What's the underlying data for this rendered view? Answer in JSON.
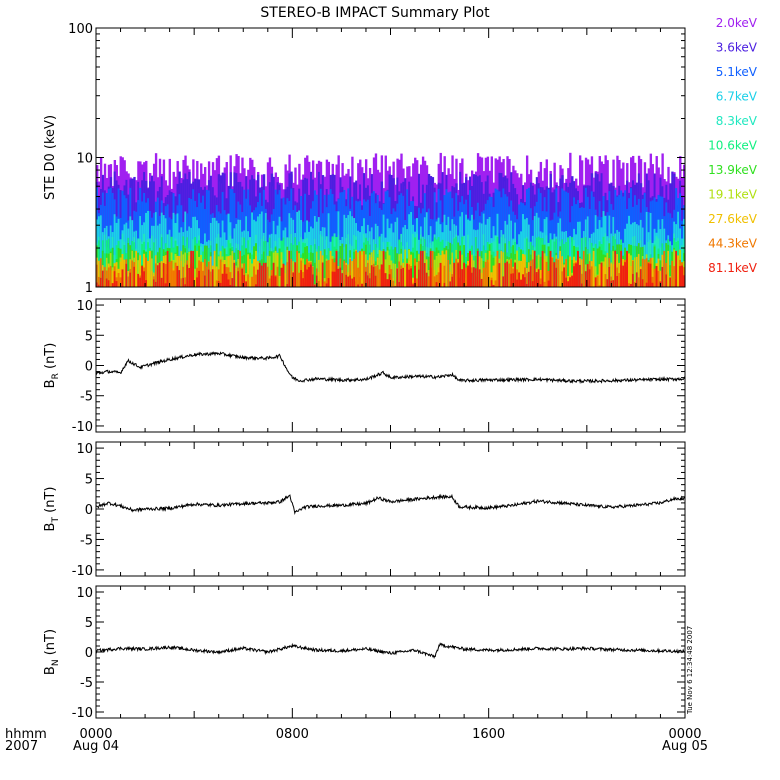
{
  "title": "STEREO-B IMPACT Summary Plot",
  "timestamp_label": "Tue Nov  6 12:34:48 2007",
  "x_axis": {
    "left_label_top": "hhmm",
    "left_label_bottom": "2007",
    "ticks": [
      {
        "hour": 0,
        "label": "0000",
        "sublabel": "Aug 04"
      },
      {
        "hour": 8,
        "label": "0800",
        "sublabel": ""
      },
      {
        "hour": 16,
        "label": "1600",
        "sublabel": ""
      },
      {
        "hour": 24,
        "label": "0000",
        "sublabel": "Aug 05"
      }
    ],
    "range_hours": [
      0,
      24
    ]
  },
  "chart_data": [
    {
      "type": "bar",
      "panel": "STE D0",
      "ylabel": "STE D0 (keV)",
      "yscale": "log",
      "ylim": [
        1,
        100
      ],
      "yticks": [
        {
          "value": 1,
          "label": "1"
        },
        {
          "value": 10,
          "label": "10"
        },
        {
          "value": 100,
          "label": "100"
        }
      ],
      "legend_placement": "right",
      "series": [
        {
          "name": "2.0keV",
          "color": "#a020f0",
          "typical_max": 8.0
        },
        {
          "name": "3.6keV",
          "color": "#4b1fe0",
          "typical_max": 6.0
        },
        {
          "name": "5.1keV",
          "color": "#1060ff",
          "typical_max": 4.5
        },
        {
          "name": "6.7keV",
          "color": "#1bd0e8",
          "typical_max": 3.0
        },
        {
          "name": "8.3keV",
          "color": "#20e8c0",
          "typical_max": 2.0
        },
        {
          "name": "10.6keV",
          "color": "#10f080",
          "typical_max": 1.9
        },
        {
          "name": "13.9keV",
          "color": "#30e020",
          "typical_max": 1.7
        },
        {
          "name": "19.1keV",
          "color": "#b0e010",
          "typical_max": 1.5
        },
        {
          "name": "27.6keV",
          "color": "#f0c000",
          "typical_max": 1.4
        },
        {
          "name": "44.3keV",
          "color": "#f07800",
          "typical_max": 1.3
        },
        {
          "name": "81.1keV",
          "color": "#f02010",
          "typical_max": 1.2
        }
      ]
    },
    {
      "type": "line",
      "panel": "BR",
      "ylabel_main": "B",
      "ylabel_sub": "R",
      "ylabel_unit": "(nT)",
      "ylim": [
        -11,
        11
      ],
      "yticks": [
        {
          "value": 10,
          "label": "10"
        },
        {
          "value": 5,
          "label": "5"
        },
        {
          "value": 0,
          "label": "0"
        },
        {
          "value": -5,
          "label": "-5"
        },
        {
          "value": -10,
          "label": "-10"
        }
      ],
      "series": [
        {
          "name": "",
          "x": [
            0,
            0.5,
            1.0,
            1.3,
            1.8,
            2.5,
            3,
            4,
            5,
            6,
            7,
            7.5,
            7.8,
            8.0,
            8.3,
            9,
            10,
            11,
            11.7,
            12,
            13,
            14,
            14.5,
            14.8,
            16,
            18,
            19,
            20,
            21,
            22,
            23,
            24
          ],
          "y": [
            -1.3,
            -1.0,
            -1.2,
            0.8,
            -0.3,
            0.5,
            1.0,
            1.8,
            2.0,
            1.3,
            1.2,
            1.6,
            -0.8,
            -2.0,
            -2.5,
            -2.2,
            -2.4,
            -2.3,
            -1.2,
            -2.0,
            -1.8,
            -1.9,
            -1.5,
            -2.5,
            -2.4,
            -2.3,
            -2.5,
            -2.6,
            -2.5,
            -2.4,
            -2.3,
            -2.2
          ]
        }
      ]
    },
    {
      "type": "line",
      "panel": "BT",
      "ylabel_main": "B",
      "ylabel_sub": "T",
      "ylabel_unit": "(nT)",
      "ylim": [
        -11,
        11
      ],
      "yticks": [
        {
          "value": 10,
          "label": "10"
        },
        {
          "value": 5,
          "label": "5"
        },
        {
          "value": 0,
          "label": "0"
        },
        {
          "value": -5,
          "label": "-5"
        },
        {
          "value": -10,
          "label": "-10"
        }
      ],
      "series": [
        {
          "name": "",
          "x": [
            0,
            0.5,
            1,
            1.5,
            2,
            3,
            4,
            5,
            6,
            7,
            7.5,
            7.9,
            8.1,
            8.5,
            9,
            10,
            11,
            11.5,
            12,
            13,
            14,
            14.5,
            14.8,
            15,
            16,
            17,
            18,
            19,
            20,
            21,
            22,
            23,
            23.5,
            24
          ],
          "y": [
            0.3,
            1.0,
            0.5,
            -0.2,
            0.0,
            0.1,
            0.8,
            0.6,
            0.9,
            1.0,
            1.2,
            2.2,
            -0.6,
            0.3,
            0.5,
            0.6,
            0.9,
            1.8,
            1.2,
            1.6,
            2.0,
            2.0,
            0.4,
            0.3,
            0.2,
            0.6,
            1.3,
            1.0,
            0.6,
            0.3,
            0.6,
            1.0,
            1.6,
            1.7
          ]
        }
      ]
    },
    {
      "type": "line",
      "panel": "BN",
      "ylabel_main": "B",
      "ylabel_sub": "N",
      "ylabel_unit": "(nT)",
      "ylim": [
        -11,
        11
      ],
      "yticks": [
        {
          "value": 10,
          "label": "10"
        },
        {
          "value": 5,
          "label": "5"
        },
        {
          "value": 0,
          "label": "0"
        },
        {
          "value": -5,
          "label": "-5"
        },
        {
          "value": -10,
          "label": "-10"
        }
      ],
      "series": [
        {
          "name": "",
          "x": [
            0,
            1,
            2,
            3,
            4,
            5,
            6,
            7,
            8,
            9,
            10,
            11,
            12,
            13,
            13.8,
            14,
            15,
            16,
            17,
            18,
            19,
            20,
            21,
            22,
            23,
            24
          ],
          "y": [
            0.2,
            0.6,
            0.5,
            0.8,
            0.3,
            0.0,
            0.6,
            0.0,
            1.0,
            0.3,
            0.2,
            0.5,
            -0.2,
            0.3,
            -0.8,
            1.2,
            0.5,
            0.3,
            0.4,
            0.6,
            0.5,
            0.6,
            0.4,
            0.3,
            0.2,
            0.1
          ]
        }
      ]
    }
  ]
}
